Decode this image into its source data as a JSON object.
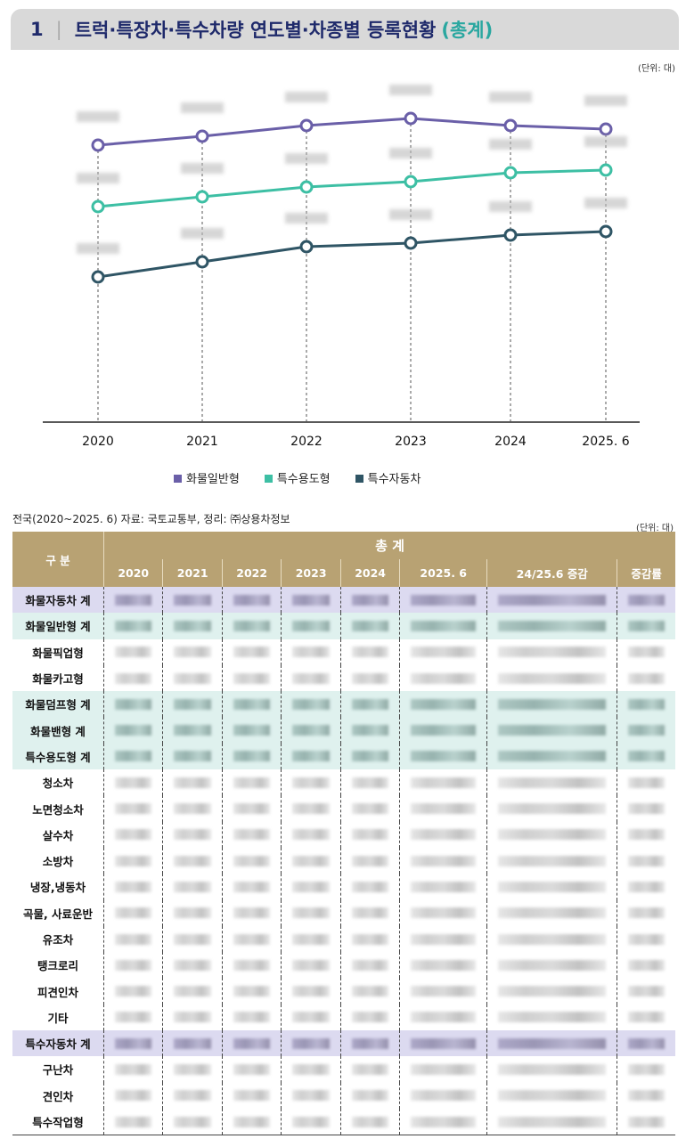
{
  "title": {
    "number": "1",
    "text": "트럭·특장차·특수차량 연도별·차종별 등록현황",
    "highlight": "(총계)"
  },
  "chart_unit": "(단위: 대)",
  "chart_data": {
    "type": "line",
    "categories": [
      "2020",
      "2021",
      "2022",
      "2023",
      "2024",
      "2025. 6"
    ],
    "note": "data labels blurred in original; values are relative estimates",
    "series": [
      {
        "name": "화물일반형",
        "color": "#6a5fa8",
        "values": [
          237,
          247,
          259,
          267,
          259,
          255
        ]
      },
      {
        "name": "특수용도형",
        "color": "#3dbfa4",
        "values": [
          168,
          179,
          190,
          196,
          206,
          209
        ]
      },
      {
        "name": "특수자동차",
        "color": "#2f5565",
        "values": [
          89,
          106,
          123,
          127,
          136,
          140
        ]
      }
    ],
    "grid": false,
    "legend": "bottom"
  },
  "table": {
    "source": "전국(2020~2025. 6) 자료: 국토교통부, 정리: ㈜상용차정보",
    "unit": "(단위: 대)",
    "header_group": "구 분",
    "header_total": "총 계",
    "columns": [
      "2020",
      "2021",
      "2022",
      "2023",
      "2024",
      "2025. 6",
      "24/25.6 증감",
      "증감률"
    ],
    "rows": [
      {
        "label": "화물자동차 계",
        "style": "p"
      },
      {
        "label": "화물일반형 계",
        "style": "t"
      },
      {
        "label": "화물픽업형",
        "style": ""
      },
      {
        "label": "화물카고형",
        "style": ""
      },
      {
        "label": "화물덤프형 계",
        "style": "t"
      },
      {
        "label": "화물밴형 계",
        "style": "t"
      },
      {
        "label": "특수용도형 계",
        "style": "t"
      },
      {
        "label": "청소차",
        "style": ""
      },
      {
        "label": "노면청소차",
        "style": ""
      },
      {
        "label": "살수차",
        "style": ""
      },
      {
        "label": "소방차",
        "style": ""
      },
      {
        "label": "냉장,냉동차",
        "style": ""
      },
      {
        "label": "곡물, 사료운반",
        "style": ""
      },
      {
        "label": "유조차",
        "style": ""
      },
      {
        "label": "탱크로리",
        "style": ""
      },
      {
        "label": "피견인차",
        "style": ""
      },
      {
        "label": "기타",
        "style": ""
      },
      {
        "label": "특수자동차 계",
        "style": "p"
      },
      {
        "label": "구난차",
        "style": ""
      },
      {
        "label": "견인차",
        "style": ""
      },
      {
        "label": "특수작업형",
        "style": ""
      }
    ]
  }
}
